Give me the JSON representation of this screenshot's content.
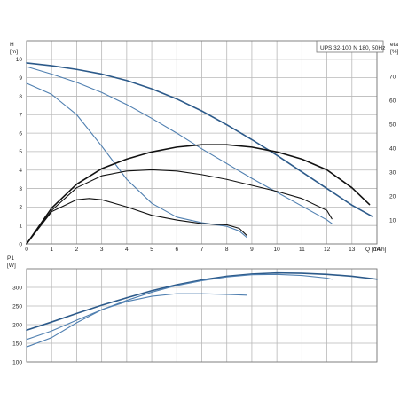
{
  "chart_data": [
    {
      "type": "line",
      "title": "UPS 32-100 N 180, 50Hz",
      "xlabel": "Q [m³/h]",
      "ylabel": "H\n[m]",
      "y2label": "eta\n[%]",
      "xlim": [
        0,
        14
      ],
      "ylim": [
        0,
        11
      ],
      "y2lim": [
        0,
        85
      ],
      "x_ticks": [
        0,
        1,
        2,
        3,
        4,
        5,
        6,
        7,
        8,
        9,
        10,
        11,
        12,
        13,
        14
      ],
      "y_ticks": [
        0,
        1,
        2,
        3,
        4,
        5,
        6,
        7,
        8,
        9,
        10
      ],
      "y2_ticks": [
        10,
        20,
        30,
        40,
        50,
        60,
        70
      ],
      "grid": true,
      "series": [
        {
          "axis": "left",
          "color": "#2c5a8a",
          "x": [
            0,
            1,
            2,
            3,
            4,
            5,
            6,
            7,
            8,
            9,
            10,
            11,
            12,
            13,
            13.8
          ],
          "y": [
            9.8,
            9.65,
            9.45,
            9.2,
            8.85,
            8.4,
            7.85,
            7.2,
            6.45,
            5.65,
            4.8,
            3.9,
            3.0,
            2.1,
            1.5
          ]
        },
        {
          "axis": "left",
          "color": "#4f7fb0",
          "x": [
            0,
            1,
            2,
            3,
            4,
            5,
            6,
            7,
            8,
            9,
            10,
            11,
            12,
            12.2
          ],
          "y": [
            9.6,
            9.2,
            8.75,
            8.2,
            7.55,
            6.8,
            6.0,
            5.15,
            4.35,
            3.55,
            2.8,
            2.05,
            1.3,
            1.1
          ]
        },
        {
          "axis": "left",
          "color": "#4f7fb0",
          "x": [
            0,
            1,
            2,
            3,
            4,
            5,
            6,
            7,
            8,
            8.5,
            8.8
          ],
          "y": [
            8.7,
            8.1,
            7.0,
            5.3,
            3.5,
            2.2,
            1.45,
            1.15,
            0.95,
            0.7,
            0.35
          ]
        },
        {
          "axis": "right",
          "color": "#111111",
          "x": [
            0,
            1,
            2,
            3,
            4,
            5,
            6,
            7,
            8,
            9,
            10,
            11,
            12,
            13,
            13.7
          ],
          "y": [
            0,
            15,
            25,
            31.5,
            35.5,
            38.5,
            40.5,
            41.5,
            41.5,
            40.5,
            38.5,
            35.5,
            31,
            23.5,
            16.5
          ]
        },
        {
          "axis": "right",
          "color": "#111111",
          "x": [
            0,
            1,
            2,
            3,
            4,
            5,
            6,
            7,
            8,
            9,
            10,
            11,
            12,
            12.2
          ],
          "y": [
            0,
            14,
            23.5,
            28.5,
            30.5,
            31,
            30.5,
            29,
            27,
            24.5,
            22,
            19,
            14,
            10.5
          ]
        },
        {
          "axis": "right",
          "color": "#111111",
          "x": [
            0,
            1,
            2,
            2.5,
            3,
            4,
            5,
            6,
            7,
            8,
            8.5,
            8.8
          ],
          "y": [
            0,
            13.5,
            18.5,
            19,
            18.5,
            15.5,
            12,
            10,
            8.5,
            8,
            6.5,
            3.5
          ]
        }
      ]
    },
    {
      "type": "line",
      "xlabel": "",
      "ylabel": "P1\n[W]",
      "xlim": [
        0,
        14
      ],
      "ylim": [
        100,
        350
      ],
      "y_ticks": [
        100,
        150,
        200,
        250,
        300
      ],
      "grid": true,
      "series": [
        {
          "color": "#2c5a8a",
          "x": [
            0,
            1,
            2,
            3,
            4,
            5,
            6,
            7,
            8,
            9,
            10,
            11,
            12,
            13,
            14
          ],
          "y": [
            185,
            207,
            230,
            252,
            272,
            291,
            307,
            320,
            330,
            336,
            339,
            338,
            335,
            330,
            322
          ]
        },
        {
          "color": "#4f7fb0",
          "x": [
            0,
            1,
            2,
            3,
            4,
            5,
            6,
            7,
            8,
            9,
            10,
            11,
            12,
            12.2
          ],
          "y": [
            160,
            183,
            212,
            240,
            265,
            287,
            305,
            318,
            328,
            334,
            335,
            332,
            325,
            322
          ]
        },
        {
          "color": "#4f7fb0",
          "x": [
            0,
            1,
            2,
            3,
            4,
            5,
            6,
            7,
            8,
            8.8
          ],
          "y": [
            140,
            165,
            205,
            240,
            262,
            276,
            283,
            283,
            281,
            279
          ]
        }
      ]
    }
  ]
}
